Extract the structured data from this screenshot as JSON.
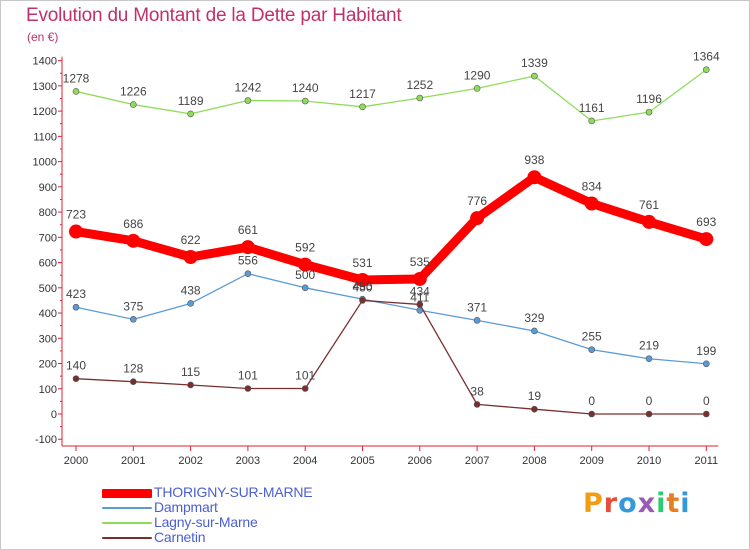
{
  "title": "Evolution du Montant de la Dette par Habitant",
  "unit": "(en €)",
  "logo": "Proxiti",
  "chart_data": {
    "type": "line",
    "title": "Evolution du Montant de la Dette par Habitant",
    "subtitle": "(en €)",
    "x": [
      2000,
      2001,
      2002,
      2003,
      2004,
      2005,
      2006,
      2007,
      2008,
      2009,
      2010,
      2011
    ],
    "ylim": [
      -100,
      1400
    ],
    "yticks": [
      -100,
      0,
      100,
      200,
      300,
      400,
      500,
      600,
      700,
      800,
      900,
      1000,
      1100,
      1200,
      1300,
      1400
    ],
    "grid": false,
    "legend_position": "bottom-left",
    "series": [
      {
        "name": "THORIGNY-SUR-MARNE",
        "color": "#ff0000",
        "values": [
          723,
          686,
          622,
          661,
          592,
          531,
          535,
          776,
          938,
          834,
          761,
          693
        ]
      },
      {
        "name": "Dampmart",
        "color": "#5b9bd5",
        "values": [
          423,
          375,
          438,
          556,
          500,
          455,
          411,
          371,
          329,
          255,
          219,
          199
        ]
      },
      {
        "name": "Lagny-sur-Marne",
        "color": "#8fdc5a",
        "values": [
          1278,
          1226,
          1189,
          1242,
          1240,
          1217,
          1252,
          1290,
          1339,
          1161,
          1196,
          1364
        ]
      },
      {
        "name": "Carnetin",
        "color": "#7a2f2f",
        "values": [
          140,
          128,
          115,
          101,
          101,
          450,
          434,
          38,
          19,
          0,
          0,
          0
        ]
      }
    ]
  }
}
